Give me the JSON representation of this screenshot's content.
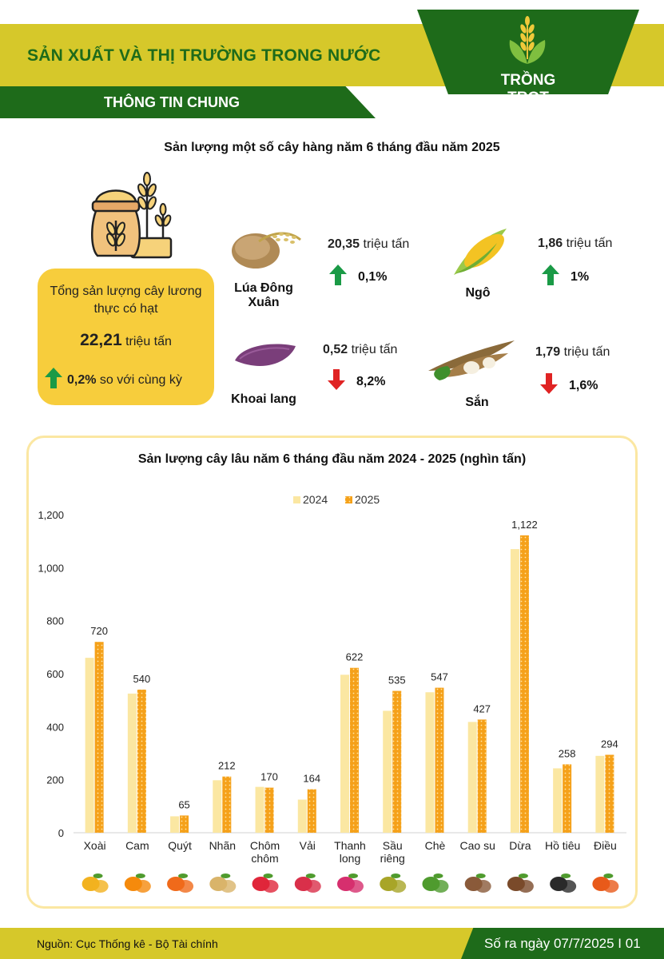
{
  "header": {
    "title": "SẢN XUẤT VÀ THỊ TRƯỜNG TRONG NƯỚC",
    "subtitle": "THÔNG TIN CHUNG",
    "badge": "TRỒNG TRỌT",
    "brand_green": "#1e6b1a",
    "brand_olive": "#d6c82a"
  },
  "annual": {
    "title": "Sản lượng một số cây hàng năm 6 tháng đầu năm 2025",
    "summary": {
      "label": "Tổng sản lượng cây lương thực có hạt",
      "value": "22,21",
      "unit": "triệu tấn",
      "change": "0,2%",
      "change_suffix": "so với cùng kỳ",
      "direction": "up"
    },
    "crops": [
      {
        "name": "Lúa Đông Xuân",
        "value": "20,35",
        "unit": "triệu tấn",
        "change": "0,1%",
        "direction": "up",
        "icon": "rice-icon"
      },
      {
        "name": "Ngô",
        "value": "1,86",
        "unit": "triệu tấn",
        "change": "1%",
        "direction": "up",
        "icon": "corn-icon"
      },
      {
        "name": "Khoai lang",
        "value": "0,52",
        "unit": "triệu tấn",
        "change": "8,2%",
        "direction": "down",
        "icon": "sweet-potato-icon"
      },
      {
        "name": "Sắn",
        "value": "1,79",
        "unit": "triệu tấn",
        "change": "1,6%",
        "direction": "down",
        "icon": "cassava-icon"
      }
    ]
  },
  "chart_data": {
    "type": "bar",
    "title": "Sản lượng cây lâu năm 6 tháng đầu năm 2024 - 2025 (nghìn tấn)",
    "categories": [
      "Xoài",
      "Cam",
      "Quýt",
      "Nhãn",
      "Chôm chôm",
      "Vải",
      "Thanh long",
      "Sầu riêng",
      "Chè",
      "Cao su",
      "Dừa",
      "Hồ tiêu",
      "Điều"
    ],
    "category_lines": [
      [
        "Xoài"
      ],
      [
        "Cam"
      ],
      [
        "Quýt"
      ],
      [
        "Nhãn"
      ],
      [
        "Chôm",
        "chôm"
      ],
      [
        "Vải"
      ],
      [
        "Thanh",
        "long"
      ],
      [
        "Sầu",
        "riêng"
      ],
      [
        "Chè"
      ],
      [
        "Cao su"
      ],
      [
        "Dừa"
      ],
      [
        "Hồ tiêu"
      ],
      [
        "Điều"
      ]
    ],
    "series": [
      {
        "name": "2024",
        "color": "#fbe7a2",
        "values": [
          660,
          525,
          62,
          198,
          173,
          125,
          596,
          460,
          530,
          418,
          1070,
          243,
          290
        ]
      },
      {
        "name": "2025",
        "color": "#f5a11a",
        "values": [
          720,
          540,
          65,
          212,
          170,
          164,
          622,
          535,
          547,
          427,
          1122,
          258,
          294
        ]
      }
    ],
    "data_labels": [
      "720",
      "540",
      "65",
      "212",
      "170",
      "164",
      "622",
      "535",
      "547",
      "427",
      "1,122",
      "258",
      "294"
    ],
    "yticks": [
      "0",
      "200",
      "400",
      "600",
      "800",
      "1,000",
      "1,200"
    ],
    "ylim": [
      0,
      1200
    ],
    "legend": "top-center",
    "grid": false,
    "icons": [
      "mango-icon",
      "orange-icon",
      "tangerine-icon",
      "longan-icon",
      "rambutan-icon",
      "lychee-icon",
      "dragon-fruit-icon",
      "durian-icon",
      "tea-icon",
      "rubber-icon",
      "coconut-icon",
      "pepper-icon",
      "cashew-icon"
    ]
  },
  "footer": {
    "source": "Nguồn: Cục Thống kê - Bộ Tài chính",
    "issue": "Số ra ngày 07/7/2025  I 01"
  }
}
